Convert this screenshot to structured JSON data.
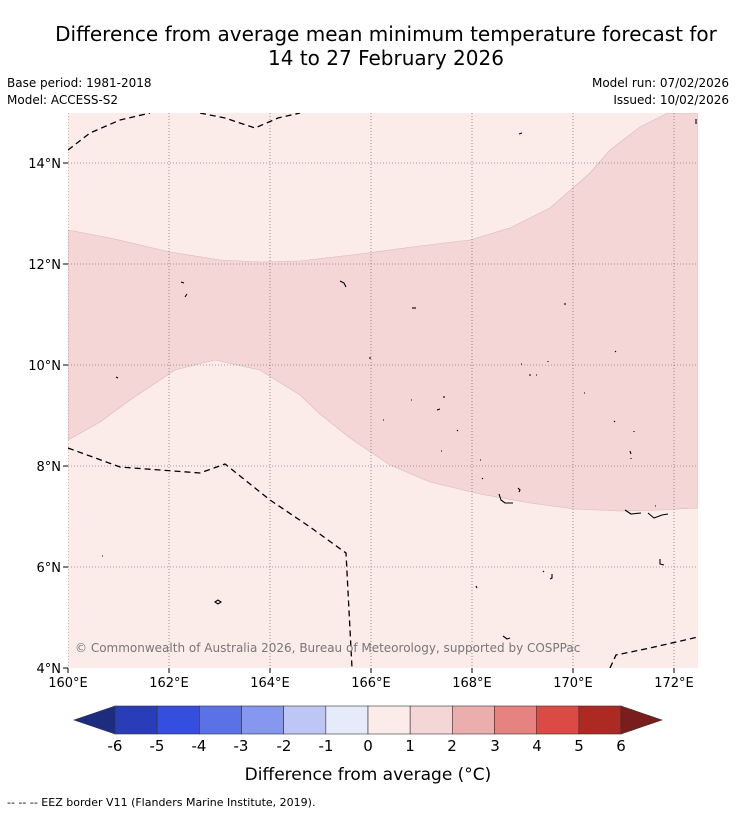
{
  "title": {
    "line1": "Difference from average mean minimum temperature forecast for",
    "line2": "14 to 27 February 2026"
  },
  "meta": {
    "base_period": "Base period: 1981-2018",
    "model": "Model: ACCESS-S2",
    "model_run": "Model run: 07/02/2026",
    "issued": "Issued: 10/02/2026"
  },
  "map": {
    "lon_range": [
      160,
      172.5
    ],
    "lat_range": [
      4,
      15
    ],
    "lon_ticks": [
      "160°E",
      "162°E",
      "164°E",
      "166°E",
      "168°E",
      "170°E",
      "172°E"
    ],
    "lat_ticks": [
      "14°N",
      "12°N",
      "10°N",
      "8°N",
      "6°N",
      "4°N"
    ],
    "copyright": "© Commonwealth of Australia 2026, Bureau of Meteorology, supported by COSPPac",
    "regions": [
      {
        "category": "0 to 1",
        "color": "#fbebe9"
      },
      {
        "category": "1 to 2",
        "color": "#f4d6d6"
      }
    ]
  },
  "colorbar": {
    "label": "Difference from average (°C)",
    "ticks": [
      "-6",
      "-5",
      "-4",
      "-3",
      "-2",
      "-1",
      "0",
      "1",
      "2",
      "3",
      "4",
      "5",
      "6"
    ],
    "colors": [
      "#1e2c80",
      "#2a3db8",
      "#344fe0",
      "#5a72e6",
      "#8597ee",
      "#bdc6f4",
      "#e6ebfc",
      "#fbebe9",
      "#f4d6d6",
      "#ecadad",
      "#e68280",
      "#dc4a45",
      "#ad2a24",
      "#7a1d1c"
    ]
  },
  "footer": {
    "legend_text": "--  --  -- EEZ border V11 (Flanders Marine Institute, 2019)."
  }
}
